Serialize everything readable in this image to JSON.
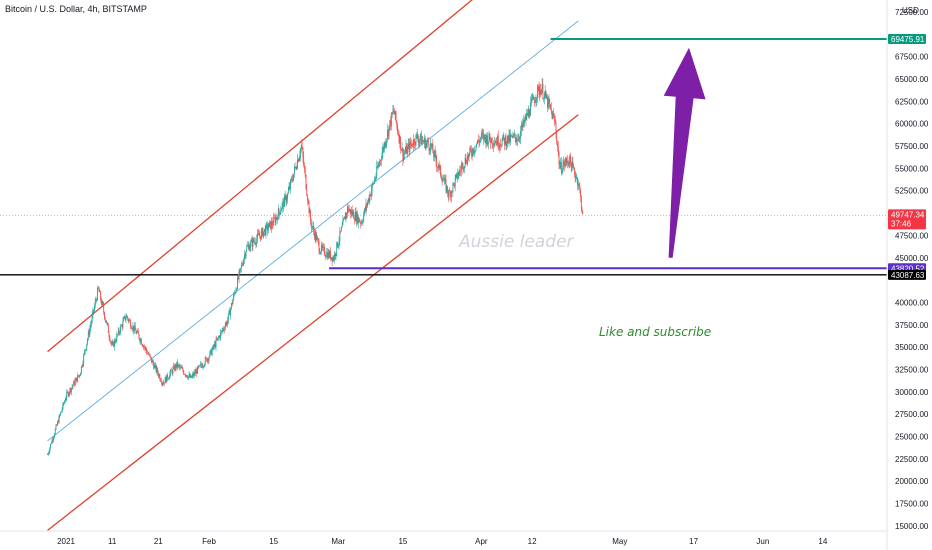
{
  "header": {
    "title": "Bitcoin / U.S. Dollar, 4h, BITSTAMP",
    "currency": "USD"
  },
  "watermarks": {
    "name": "Aussie leader",
    "cta": "Like and subscribe"
  },
  "chart_data": {
    "type": "candlestick",
    "title": "Bitcoin / U.S. Dollar, 4h, BITSTAMP",
    "y_axis": {
      "unit": "USD",
      "ylim": [
        14500,
        72500
      ],
      "tick_values": [
        15000,
        17500,
        20000,
        22500,
        25000,
        27500,
        30000,
        32500,
        35000,
        37500,
        40000,
        45000,
        47500,
        52500,
        55000,
        57500,
        60000,
        62500,
        65000,
        67500,
        72500
      ],
      "tick_labels": [
        "15000.00",
        "17500.00",
        "20000.00",
        "22500.00",
        "25000.00",
        "27500.00",
        "30000.00",
        "32500.00",
        "35000.00",
        "37500.00",
        "40000.00",
        "45000.00",
        "47500.00",
        "52500.00",
        "55000.00",
        "57500.00",
        "60000.00",
        "62500.00",
        "65000.00",
        "67500.00",
        "72500.00"
      ]
    },
    "x_axis": {
      "ticks": [
        {
          "label": "2021",
          "date": "2021-01-01"
        },
        {
          "label": "11",
          "date": "2021-01-11"
        },
        {
          "label": "21",
          "date": "2021-01-21"
        },
        {
          "label": "Feb",
          "date": "2021-02-01"
        },
        {
          "label": "15",
          "date": "2021-02-15"
        },
        {
          "label": "Mar",
          "date": "2021-03-01"
        },
        {
          "label": "15",
          "date": "2021-03-15"
        },
        {
          "label": "Apr",
          "date": "2021-04-01"
        },
        {
          "label": "12",
          "date": "2021-04-12"
        },
        {
          "label": "May",
          "date": "2021-05-01"
        },
        {
          "label": "17",
          "date": "2021-05-17"
        },
        {
          "label": "Jun",
          "date": "2021-06-01"
        },
        {
          "label": "14",
          "date": "2021-06-14"
        }
      ]
    },
    "price_path": [
      {
        "date": "2020-12-28",
        "price": 23000
      },
      {
        "date": "2021-01-01",
        "price": 29500
      },
      {
        "date": "2021-01-04",
        "price": 32000
      },
      {
        "date": "2021-01-08",
        "price": 41500
      },
      {
        "date": "2021-01-11",
        "price": 35000
      },
      {
        "date": "2021-01-14",
        "price": 38500
      },
      {
        "date": "2021-01-17",
        "price": 36000
      },
      {
        "date": "2021-01-22",
        "price": 31000
      },
      {
        "date": "2021-01-25",
        "price": 33000
      },
      {
        "date": "2021-01-28",
        "price": 31500
      },
      {
        "date": "2021-02-01",
        "price": 34000
      },
      {
        "date": "2021-02-05",
        "price": 38000
      },
      {
        "date": "2021-02-09",
        "price": 46000
      },
      {
        "date": "2021-02-12",
        "price": 47500
      },
      {
        "date": "2021-02-15",
        "price": 49000
      },
      {
        "date": "2021-02-18",
        "price": 52000
      },
      {
        "date": "2021-02-21",
        "price": 57500
      },
      {
        "date": "2021-02-23",
        "price": 49000
      },
      {
        "date": "2021-02-25",
        "price": 46000
      },
      {
        "date": "2021-02-28",
        "price": 45000
      },
      {
        "date": "2021-03-03",
        "price": 50500
      },
      {
        "date": "2021-03-06",
        "price": 49000
      },
      {
        "date": "2021-03-09",
        "price": 54000
      },
      {
        "date": "2021-03-13",
        "price": 61500
      },
      {
        "date": "2021-03-15",
        "price": 56500
      },
      {
        "date": "2021-03-18",
        "price": 58500
      },
      {
        "date": "2021-03-21",
        "price": 57500
      },
      {
        "date": "2021-03-25",
        "price": 52000
      },
      {
        "date": "2021-03-28",
        "price": 55500
      },
      {
        "date": "2021-04-01",
        "price": 58500
      },
      {
        "date": "2021-04-05",
        "price": 58000
      },
      {
        "date": "2021-04-09",
        "price": 58500
      },
      {
        "date": "2021-04-13",
        "price": 63500
      },
      {
        "date": "2021-04-14",
        "price": 64000
      },
      {
        "date": "2021-04-16",
        "price": 61500
      },
      {
        "date": "2021-04-17",
        "price": 60000
      },
      {
        "date": "2021-04-18",
        "price": 55000
      },
      {
        "date": "2021-04-20",
        "price": 56000
      },
      {
        "date": "2021-04-22",
        "price": 53500
      },
      {
        "date": "2021-04-23",
        "price": 49747.34
      }
    ],
    "price_rule": 49747.34,
    "annotations": {
      "upper_channel_line": [
        {
          "date": "2020-12-28",
          "price": 34500
        },
        {
          "date": "2021-04-18",
          "price": 82000
        }
      ],
      "middle_channel_line": [
        {
          "date": "2020-12-28",
          "price": 24500
        },
        {
          "date": "2021-04-22",
          "price": 71500
        }
      ],
      "lower_channel_line": [
        {
          "date": "2020-12-28",
          "price": 14500
        },
        {
          "date": "2021-04-22",
          "price": 61000
        }
      ],
      "target_line": {
        "price": 69475.91,
        "from": "2021-04-16"
      },
      "support_line": {
        "price": 43820.52,
        "from": "2021-02-27"
      },
      "black_line": {
        "price": 43087.63
      },
      "arrow": {
        "from": {
          "date": "2021-05-12",
          "price": 45000
        },
        "to": {
          "date": "2021-05-16",
          "price": 68500
        }
      }
    },
    "price_labels": [
      {
        "price": 69475.91,
        "text": "69475.91",
        "color": "#089981"
      },
      {
        "price": 49747.34,
        "text": "49747.34",
        "sub": "37:46",
        "color": "#f23645"
      },
      {
        "price": 43820.52,
        "text": "43820.52",
        "color": "#5b2fc9"
      },
      {
        "price": 43087.63,
        "text": "43087.63",
        "color": "#000000"
      }
    ],
    "colors": {
      "up": "#26a69a",
      "down": "#ef5350",
      "channel": "#e0402a",
      "mid_line": "#4aa3e0",
      "target": "#089981",
      "support": "#5b2fc9",
      "arrow": "#7e1fa8",
      "current": "#f23645"
    },
    "grid": false
  }
}
